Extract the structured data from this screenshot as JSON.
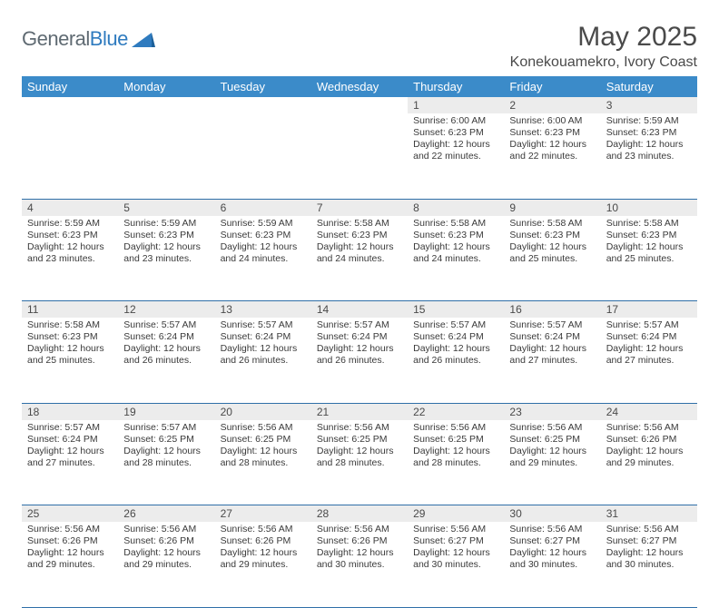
{
  "logo": {
    "word1": "General",
    "word2": "Blue"
  },
  "title": {
    "month": "May 2025",
    "location": "Konekouamekro, Ivory Coast"
  },
  "colors": {
    "header_bg": "#3b8bc9",
    "header_text": "#ffffff",
    "daynum_bg": "#ececec",
    "rule": "#2f6fa8",
    "text": "#3a3a3a",
    "logo_gray": "#5f6a72",
    "logo_blue": "#2f7bbf"
  },
  "day_headers": [
    "Sunday",
    "Monday",
    "Tuesday",
    "Wednesday",
    "Thursday",
    "Friday",
    "Saturday"
  ],
  "weeks": [
    [
      {
        "n": "",
        "empty": true
      },
      {
        "n": "",
        "empty": true
      },
      {
        "n": "",
        "empty": true
      },
      {
        "n": "",
        "empty": true
      },
      {
        "n": "1",
        "sunrise": "6:00 AM",
        "sunset": "6:23 PM",
        "daylight": "12 hours and 22 minutes."
      },
      {
        "n": "2",
        "sunrise": "6:00 AM",
        "sunset": "6:23 PM",
        "daylight": "12 hours and 22 minutes."
      },
      {
        "n": "3",
        "sunrise": "5:59 AM",
        "sunset": "6:23 PM",
        "daylight": "12 hours and 23 minutes."
      }
    ],
    [
      {
        "n": "4",
        "sunrise": "5:59 AM",
        "sunset": "6:23 PM",
        "daylight": "12 hours and 23 minutes."
      },
      {
        "n": "5",
        "sunrise": "5:59 AM",
        "sunset": "6:23 PM",
        "daylight": "12 hours and 23 minutes."
      },
      {
        "n": "6",
        "sunrise": "5:59 AM",
        "sunset": "6:23 PM",
        "daylight": "12 hours and 24 minutes."
      },
      {
        "n": "7",
        "sunrise": "5:58 AM",
        "sunset": "6:23 PM",
        "daylight": "12 hours and 24 minutes."
      },
      {
        "n": "8",
        "sunrise": "5:58 AM",
        "sunset": "6:23 PM",
        "daylight": "12 hours and 24 minutes."
      },
      {
        "n": "9",
        "sunrise": "5:58 AM",
        "sunset": "6:23 PM",
        "daylight": "12 hours and 25 minutes."
      },
      {
        "n": "10",
        "sunrise": "5:58 AM",
        "sunset": "6:23 PM",
        "daylight": "12 hours and 25 minutes."
      }
    ],
    [
      {
        "n": "11",
        "sunrise": "5:58 AM",
        "sunset": "6:23 PM",
        "daylight": "12 hours and 25 minutes."
      },
      {
        "n": "12",
        "sunrise": "5:57 AM",
        "sunset": "6:24 PM",
        "daylight": "12 hours and 26 minutes."
      },
      {
        "n": "13",
        "sunrise": "5:57 AM",
        "sunset": "6:24 PM",
        "daylight": "12 hours and 26 minutes."
      },
      {
        "n": "14",
        "sunrise": "5:57 AM",
        "sunset": "6:24 PM",
        "daylight": "12 hours and 26 minutes."
      },
      {
        "n": "15",
        "sunrise": "5:57 AM",
        "sunset": "6:24 PM",
        "daylight": "12 hours and 26 minutes."
      },
      {
        "n": "16",
        "sunrise": "5:57 AM",
        "sunset": "6:24 PM",
        "daylight": "12 hours and 27 minutes."
      },
      {
        "n": "17",
        "sunrise": "5:57 AM",
        "sunset": "6:24 PM",
        "daylight": "12 hours and 27 minutes."
      }
    ],
    [
      {
        "n": "18",
        "sunrise": "5:57 AM",
        "sunset": "6:24 PM",
        "daylight": "12 hours and 27 minutes."
      },
      {
        "n": "19",
        "sunrise": "5:57 AM",
        "sunset": "6:25 PM",
        "daylight": "12 hours and 28 minutes."
      },
      {
        "n": "20",
        "sunrise": "5:56 AM",
        "sunset": "6:25 PM",
        "daylight": "12 hours and 28 minutes."
      },
      {
        "n": "21",
        "sunrise": "5:56 AM",
        "sunset": "6:25 PM",
        "daylight": "12 hours and 28 minutes."
      },
      {
        "n": "22",
        "sunrise": "5:56 AM",
        "sunset": "6:25 PM",
        "daylight": "12 hours and 28 minutes."
      },
      {
        "n": "23",
        "sunrise": "5:56 AM",
        "sunset": "6:25 PM",
        "daylight": "12 hours and 29 minutes."
      },
      {
        "n": "24",
        "sunrise": "5:56 AM",
        "sunset": "6:26 PM",
        "daylight": "12 hours and 29 minutes."
      }
    ],
    [
      {
        "n": "25",
        "sunrise": "5:56 AM",
        "sunset": "6:26 PM",
        "daylight": "12 hours and 29 minutes."
      },
      {
        "n": "26",
        "sunrise": "5:56 AM",
        "sunset": "6:26 PM",
        "daylight": "12 hours and 29 minutes."
      },
      {
        "n": "27",
        "sunrise": "5:56 AM",
        "sunset": "6:26 PM",
        "daylight": "12 hours and 29 minutes."
      },
      {
        "n": "28",
        "sunrise": "5:56 AM",
        "sunset": "6:26 PM",
        "daylight": "12 hours and 30 minutes."
      },
      {
        "n": "29",
        "sunrise": "5:56 AM",
        "sunset": "6:27 PM",
        "daylight": "12 hours and 30 minutes."
      },
      {
        "n": "30",
        "sunrise": "5:56 AM",
        "sunset": "6:27 PM",
        "daylight": "12 hours and 30 minutes."
      },
      {
        "n": "31",
        "sunrise": "5:56 AM",
        "sunset": "6:27 PM",
        "daylight": "12 hours and 30 minutes."
      }
    ]
  ],
  "labels": {
    "sunrise": "Sunrise: ",
    "sunset": "Sunset: ",
    "daylight": "Daylight: "
  }
}
